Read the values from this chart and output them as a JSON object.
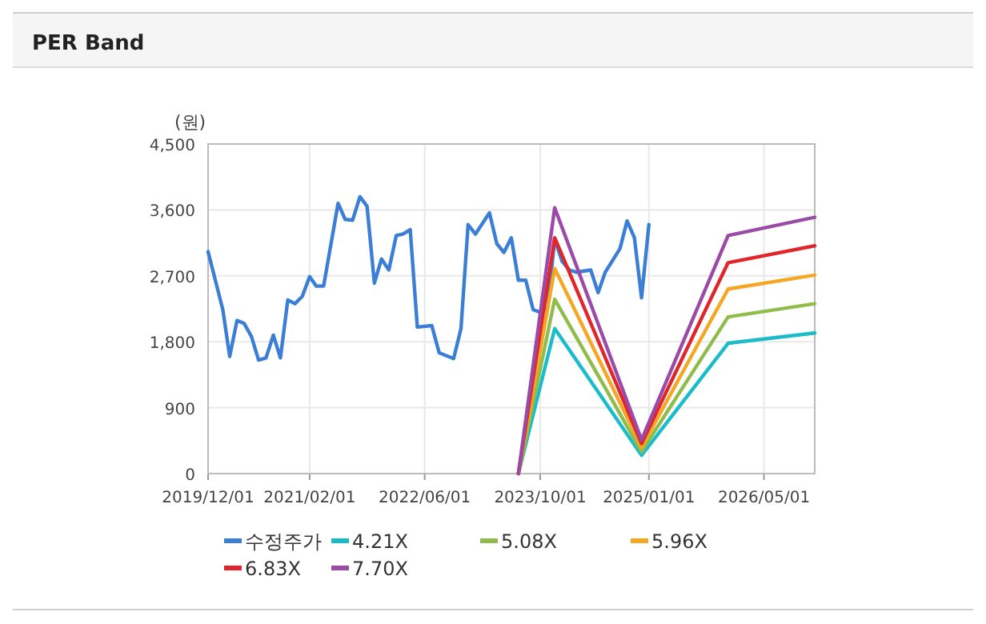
{
  "chart_data": {
    "type": "line",
    "title": "PER Band",
    "ylabel": "(원)",
    "xlim": [
      "2019-12-01",
      "2026-12-01"
    ],
    "xticks": [
      {
        "value": "2019-12-01",
        "label": "2019/12/01"
      },
      {
        "value": "2021-02-01",
        "label": "2021/02/01"
      },
      {
        "value": "2022-06-01",
        "label": "2022/06/01"
      },
      {
        "value": "2023-10-01",
        "label": "2023/10/01"
      },
      {
        "value": "2025-01-01",
        "label": "2025/01/01"
      },
      {
        "value": "2026-05-01",
        "label": "2026/05/01"
      }
    ],
    "ylim": [
      0,
      4500
    ],
    "yticks": [
      0,
      {
        "value": 900,
        "label": "900"
      },
      {
        "value": 1800,
        "label": "1,800"
      },
      {
        "value": 2700,
        "label": "2,700"
      },
      {
        "value": 3600,
        "label": "3,600"
      },
      {
        "value": 4500,
        "label": "4,500"
      }
    ],
    "grid": true,
    "legend": "bottom",
    "marker": "none",
    "line_style": "solid",
    "series": [
      {
        "name": "수정주가",
        "color": "#3a7fd5",
        "x": [
          "2019-12",
          "2020-02",
          "2020-03",
          "2020-04",
          "2020-05",
          "2020-06",
          "2020-07",
          "2020-08",
          "2020-09",
          "2020-10",
          "2020-11",
          "2020-12",
          "2021-01",
          "2021-02",
          "2021-03",
          "2021-04",
          "2021-06",
          "2021-07",
          "2021-08",
          "2021-09",
          "2021-10",
          "2021-11",
          "2021-12",
          "2022-01",
          "2022-02",
          "2022-03",
          "2022-04",
          "2022-05",
          "2022-07",
          "2022-08",
          "2022-10",
          "2022-11",
          "2022-12",
          "2023-01",
          "2023-03",
          "2023-04",
          "2023-05",
          "2023-06",
          "2023-07",
          "2023-08",
          "2023-09",
          "2023-10",
          "2023-11",
          "2023-12",
          "2024-01",
          "2024-02",
          "2024-03",
          "2024-05",
          "2024-06",
          "2024-07",
          "2024-09",
          "2024-10",
          "2024-11",
          "2024-12",
          "2025-01"
        ],
        "values": [
          3030,
          2240,
          1600,
          2090,
          2050,
          1870,
          1550,
          1580,
          1890,
          1580,
          2370,
          2320,
          2420,
          2690,
          2560,
          2560,
          3690,
          3470,
          3460,
          3780,
          3650,
          2600,
          2930,
          2780,
          3250,
          3270,
          3330,
          2000,
          2020,
          1650,
          1570,
          1980,
          3400,
          3270,
          3560,
          3140,
          3020,
          3220,
          2640,
          2640,
          2240,
          2200,
          2270,
          3200,
          2900,
          2780,
          2750,
          2780,
          2470,
          2750,
          3070,
          3450,
          3220,
          2400,
          3400
        ]
      },
      {
        "name": "4.21X",
        "color": "#19bcc8",
        "x": [
          "2023-07",
          "2023-12",
          "2024-12",
          "2025-12",
          "2026-12"
        ],
        "values": [
          0,
          1980,
          250,
          1780,
          1920
        ]
      },
      {
        "name": "5.08X",
        "color": "#8fbc4a",
        "x": [
          "2023-07",
          "2023-12",
          "2024-12",
          "2025-12",
          "2026-12"
        ],
        "values": [
          0,
          2380,
          300,
          2140,
          2320
        ]
      },
      {
        "name": "5.96X",
        "color": "#f5a623",
        "x": [
          "2023-07",
          "2023-12",
          "2024-12",
          "2025-12",
          "2026-12"
        ],
        "values": [
          0,
          2800,
          360,
          2520,
          2710
        ]
      },
      {
        "name": "6.83X",
        "color": "#e0262a",
        "x": [
          "2023-07",
          "2023-12",
          "2024-12",
          "2025-12",
          "2026-12"
        ],
        "values": [
          0,
          3220,
          410,
          2880,
          3110
        ]
      },
      {
        "name": "7.70X",
        "color": "#9b4aa8",
        "x": [
          "2023-07",
          "2023-12",
          "2024-12",
          "2025-12",
          "2026-12"
        ],
        "values": [
          0,
          3630,
          460,
          3250,
          3500
        ]
      }
    ]
  }
}
